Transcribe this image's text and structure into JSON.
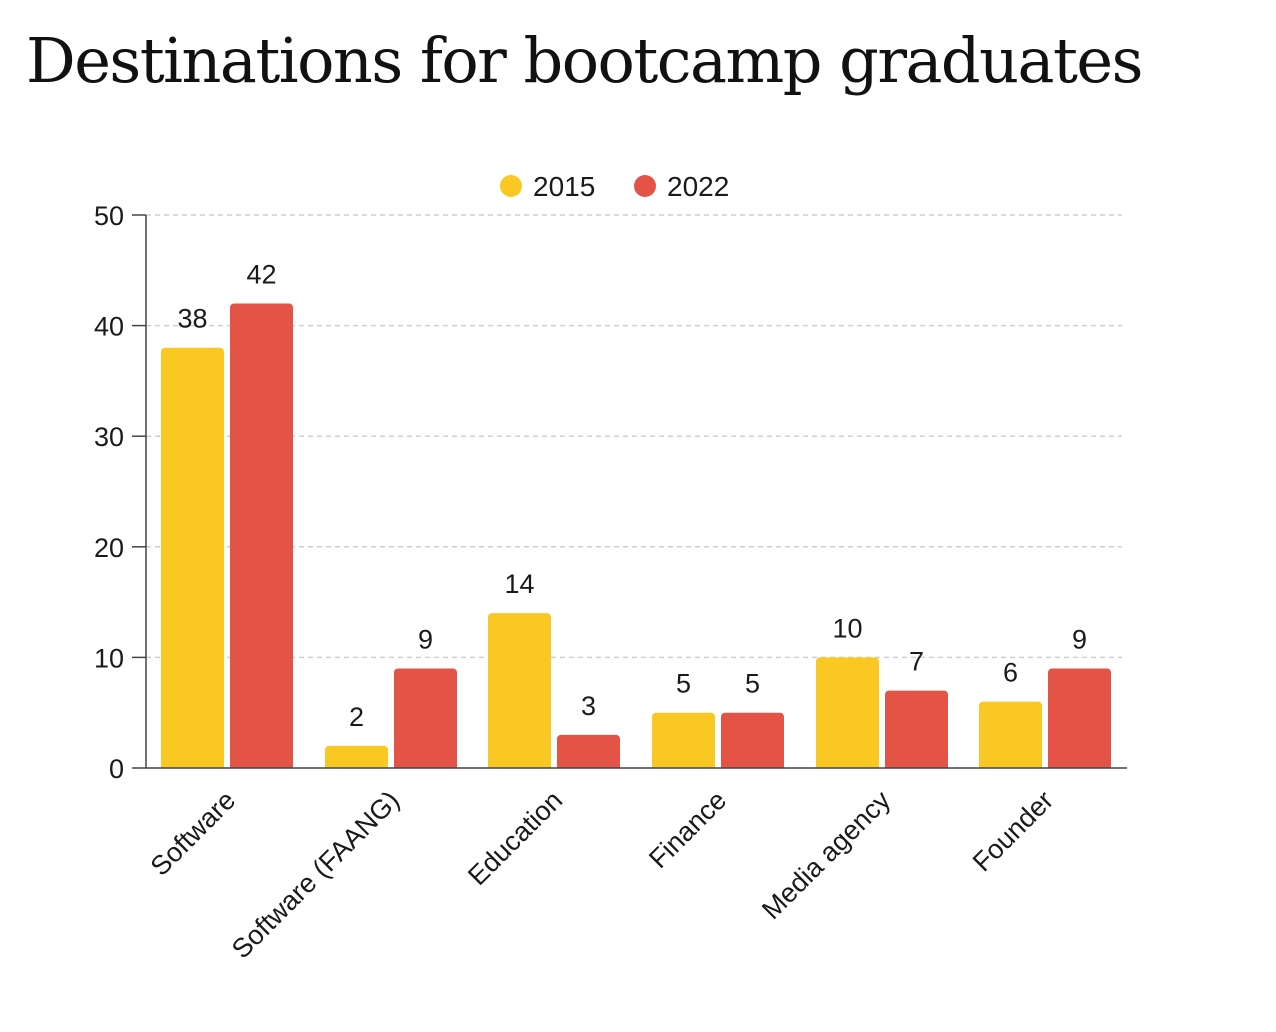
{
  "chart_data": {
    "type": "bar",
    "title": "Destinations for bootcamp graduates",
    "categories": [
      "Software",
      "Software (FAANG)",
      "Education",
      "Finance",
      "Media agency",
      "Founder"
    ],
    "series": [
      {
        "name": "2015",
        "color": "#F9C823",
        "values": [
          38,
          2,
          14,
          5,
          10,
          6
        ]
      },
      {
        "name": "2022",
        "color": "#E35446",
        "values": [
          42,
          9,
          3,
          5,
          7,
          9
        ]
      }
    ],
    "ylim": [
      0,
      50
    ],
    "yticks": [
      0,
      10,
      20,
      30,
      40,
      50
    ],
    "grid": true,
    "legend_position": "top-center",
    "xlabel": "",
    "ylabel": ""
  }
}
